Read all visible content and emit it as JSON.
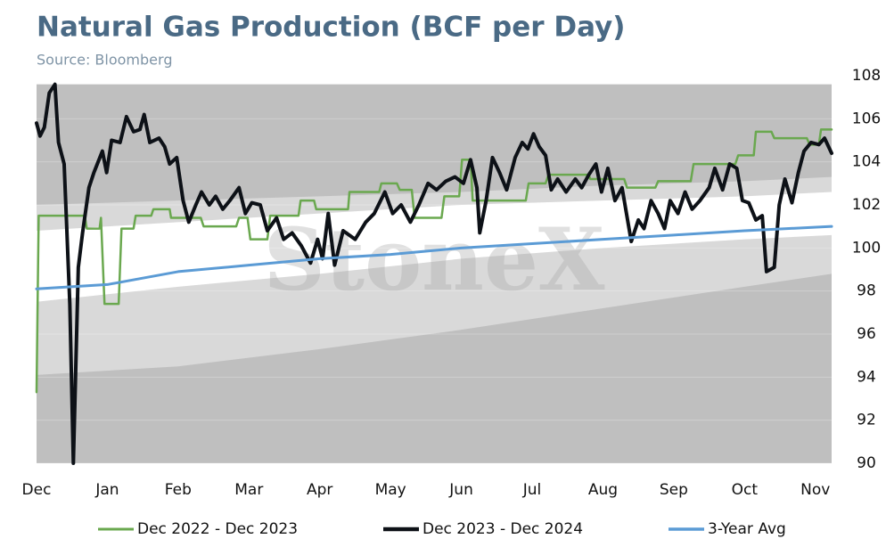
{
  "chart_data": {
    "type": "line",
    "title": "Natural Gas Production (BCF per Day)",
    "subtitle": "Source: Bloomberg",
    "watermark": "StoneX",
    "xlim": [
      0,
      11.23
    ],
    "ylim": [
      90,
      108
    ],
    "yticks": [
      90,
      92,
      94,
      96,
      98,
      100,
      102,
      104,
      106,
      108
    ],
    "xticks": [
      {
        "value": 0,
        "label": "Dec"
      },
      {
        "value": 1,
        "label": "Jan"
      },
      {
        "value": 2,
        "label": "Feb"
      },
      {
        "value": 3,
        "label": "Mar"
      },
      {
        "value": 4,
        "label": "Apr"
      },
      {
        "value": 5,
        "label": "May"
      },
      {
        "value": 6,
        "label": "Jun"
      },
      {
        "value": 7,
        "label": "Jul"
      },
      {
        "value": 8,
        "label": "Aug"
      },
      {
        "value": 9,
        "label": "Sep"
      },
      {
        "value": 10,
        "label": "Oct"
      },
      {
        "value": 11,
        "label": "Nov"
      }
    ],
    "grid": true,
    "legend": "bottom",
    "bands": [
      {
        "color": "#bfbfbf",
        "x": [
          0,
          11.23
        ],
        "upper": [
          107.6,
          107.6
        ],
        "lower": [
          90,
          90
        ]
      },
      {
        "color": "#d9d9d9",
        "x": [
          0,
          2,
          4,
          6,
          8,
          10,
          11.23
        ],
        "upper": [
          102.0,
          102.2,
          102.4,
          102.6,
          102.9,
          103.1,
          103.3
        ],
        "lower": [
          94.1,
          94.5,
          95.3,
          96.2,
          97.2,
          98.2,
          98.8
        ]
      },
      {
        "color": "#ffffff",
        "x": [
          0,
          2,
          4,
          6,
          8,
          10,
          11.23
        ],
        "upper": [
          100.8,
          101.2,
          101.6,
          102.0,
          102.2,
          102.4,
          102.6
        ],
        "lower": [
          97.5,
          98.2,
          98.8,
          99.5,
          100.0,
          100.4,
          100.6
        ]
      }
    ],
    "series": [
      {
        "name": "Dec 2022 - Dec 2023",
        "color": "#6aa84f",
        "width": 2.5,
        "x": [
          0,
          0.03,
          0.68,
          0.71,
          0.89,
          0.91,
          0.96,
          1.16,
          1.2,
          1.37,
          1.4,
          1.62,
          1.65,
          1.88,
          1.9,
          2.32,
          2.36,
          2.82,
          2.86,
          2.98,
          3.02,
          3.26,
          3.3,
          3.7,
          3.73,
          3.92,
          3.95,
          4.4,
          4.42,
          4.84,
          4.87,
          5.09,
          5.13,
          5.3,
          5.34,
          5.72,
          5.76,
          5.97,
          6.01,
          6.13,
          6.16,
          6.91,
          6.95,
          7.19,
          7.23,
          7.8,
          7.82,
          8.3,
          8.34,
          8.74,
          8.78,
          9.24,
          9.28,
          9.87,
          9.91,
          10.13,
          10.16,
          10.38,
          10.42,
          10.88,
          10.92,
          11.05,
          11.08,
          11.23
        ],
        "values": [
          93.3,
          101.5,
          101.5,
          100.9,
          100.9,
          101.4,
          97.4,
          97.4,
          100.9,
          100.9,
          101.5,
          101.5,
          101.8,
          101.8,
          101.4,
          101.4,
          101.0,
          101.0,
          101.4,
          101.4,
          100.4,
          100.4,
          101.5,
          101.5,
          102.2,
          102.2,
          101.8,
          101.8,
          102.6,
          102.6,
          103.0,
          103.0,
          102.7,
          102.7,
          101.4,
          101.4,
          102.4,
          102.4,
          104.1,
          104.1,
          102.2,
          102.2,
          103.0,
          103.0,
          103.4,
          103.4,
          103.2,
          103.2,
          102.8,
          102.8,
          103.1,
          103.1,
          103.9,
          103.9,
          104.3,
          104.3,
          105.4,
          105.4,
          105.1,
          105.1,
          104.8,
          104.8,
          105.5,
          105.5
        ]
      },
      {
        "name": "Dec 2023 - Dec 2024",
        "color": "#0d1117",
        "width": 4,
        "x": [
          0,
          0.05,
          0.11,
          0.18,
          0.26,
          0.31,
          0.39,
          0.47,
          0.52,
          0.59,
          0.65,
          0.74,
          0.81,
          0.93,
          0.99,
          1.06,
          1.18,
          1.27,
          1.37,
          1.46,
          1.52,
          1.6,
          1.73,
          1.81,
          1.88,
          1.98,
          2.07,
          2.15,
          2.25,
          2.33,
          2.44,
          2.53,
          2.63,
          2.73,
          2.86,
          2.95,
          3.04,
          3.16,
          3.26,
          3.39,
          3.49,
          3.61,
          3.74,
          3.87,
          3.97,
          4.04,
          4.12,
          4.21,
          4.33,
          4.5,
          4.65,
          4.77,
          4.92,
          5.03,
          5.15,
          5.28,
          5.4,
          5.53,
          5.65,
          5.78,
          5.91,
          6.03,
          6.13,
          6.22,
          6.26,
          6.35,
          6.44,
          6.54,
          6.64,
          6.76,
          6.86,
          6.94,
          7.02,
          7.1,
          7.19,
          7.27,
          7.36,
          7.48,
          7.61,
          7.7,
          7.8,
          7.9,
          7.98,
          8.07,
          8.17,
          8.27,
          8.4,
          8.5,
          8.58,
          8.68,
          8.78,
          8.87,
          8.95,
          9.06,
          9.16,
          9.26,
          9.37,
          9.5,
          9.58,
          9.69,
          9.79,
          9.89,
          9.97,
          10.06,
          10.16,
          10.25,
          10.31,
          10.42,
          10.49,
          10.57,
          10.67,
          10.76,
          10.84,
          10.94,
          11.05,
          11.13,
          11.23
        ],
        "values": [
          105.8,
          105.2,
          105.6,
          107.2,
          107.6,
          104.9,
          103.9,
          97.4,
          90.0,
          99.1,
          100.7,
          102.8,
          103.5,
          104.5,
          103.5,
          105.0,
          104.9,
          106.1,
          105.4,
          105.5,
          106.2,
          104.9,
          105.1,
          104.7,
          103.9,
          104.2,
          102.2,
          101.2,
          102.0,
          102.6,
          102.0,
          102.4,
          101.8,
          102.2,
          102.8,
          101.6,
          102.1,
          102.0,
          100.8,
          101.4,
          100.4,
          100.7,
          100.1,
          99.3,
          100.4,
          99.5,
          101.6,
          99.2,
          100.8,
          100.4,
          101.2,
          101.6,
          102.6,
          101.6,
          102.0,
          101.2,
          102.0,
          103.0,
          102.7,
          103.1,
          103.3,
          103.0,
          104.1,
          102.8,
          100.7,
          102.2,
          104.2,
          103.5,
          102.7,
          104.2,
          104.9,
          104.6,
          105.3,
          104.7,
          104.3,
          102.7,
          103.2,
          102.6,
          103.2,
          102.8,
          103.4,
          103.9,
          102.6,
          103.7,
          102.2,
          102.8,
          100.3,
          101.3,
          100.9,
          102.2,
          101.6,
          100.9,
          102.2,
          101.6,
          102.6,
          101.8,
          102.2,
          102.8,
          103.7,
          102.7,
          103.9,
          103.7,
          102.2,
          102.1,
          101.3,
          101.5,
          98.9,
          99.1,
          102.0,
          103.2,
          102.1,
          103.5,
          104.5,
          104.9,
          104.8,
          105.1,
          104.4
        ]
      },
      {
        "name": "3-Year Avg",
        "color": "#5b9bd5",
        "width": 3,
        "x": [
          0,
          1,
          1.5,
          2,
          3,
          4,
          5,
          6,
          7,
          8,
          9,
          10,
          11.23
        ],
        "values": [
          98.1,
          98.3,
          98.6,
          98.9,
          99.2,
          99.5,
          99.7,
          100.0,
          100.2,
          100.4,
          100.6,
          100.8,
          101.0
        ]
      }
    ]
  }
}
